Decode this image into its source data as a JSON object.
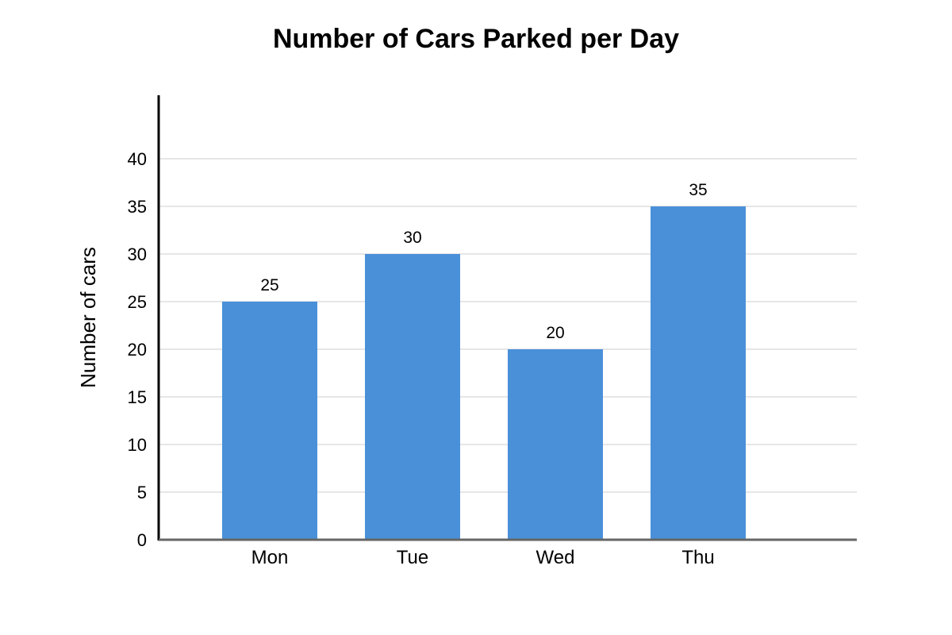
{
  "chart_data": {
    "type": "bar",
    "title": "Number of Cars Parked per Day",
    "xlabel": "",
    "ylabel": "Number of cars",
    "categories": [
      "Mon",
      "Tue",
      "Wed",
      "Thu"
    ],
    "values": [
      25,
      30,
      20,
      35
    ],
    "data_labels": [
      "25",
      "30",
      "20",
      "35"
    ],
    "ylim": [
      0,
      40
    ],
    "yticks": [
      0,
      5,
      10,
      15,
      20,
      25,
      30,
      35,
      40
    ],
    "ytick_labels": [
      "0",
      "5",
      "10",
      "15",
      "20",
      "25",
      "30",
      "35",
      "40"
    ],
    "grid": true,
    "legend": "none",
    "bar_color": "#4a90d9",
    "grid_color": "#dddddd",
    "axis_color": "#000000",
    "baseline_color": "#666666"
  }
}
